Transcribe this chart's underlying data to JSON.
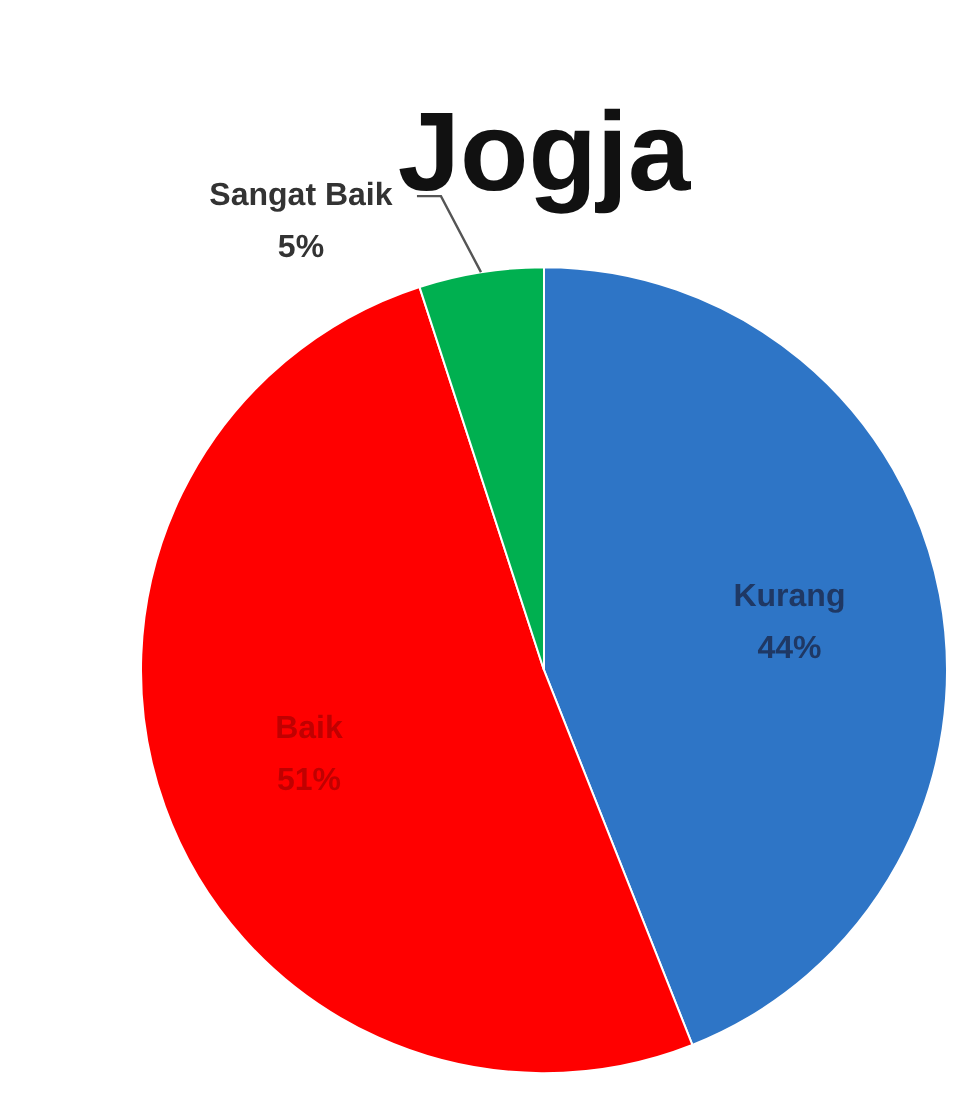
{
  "chart_data": {
    "type": "pie",
    "title": "Jogja",
    "categories": [
      "Kurang",
      "Baik",
      "Sangat Baik"
    ],
    "values": [
      44,
      51,
      5
    ],
    "value_labels": [
      "44%",
      "51%",
      "5%"
    ],
    "colors": [
      "#2e75c6",
      "#ff0000",
      "#00b050"
    ],
    "legend": false
  }
}
